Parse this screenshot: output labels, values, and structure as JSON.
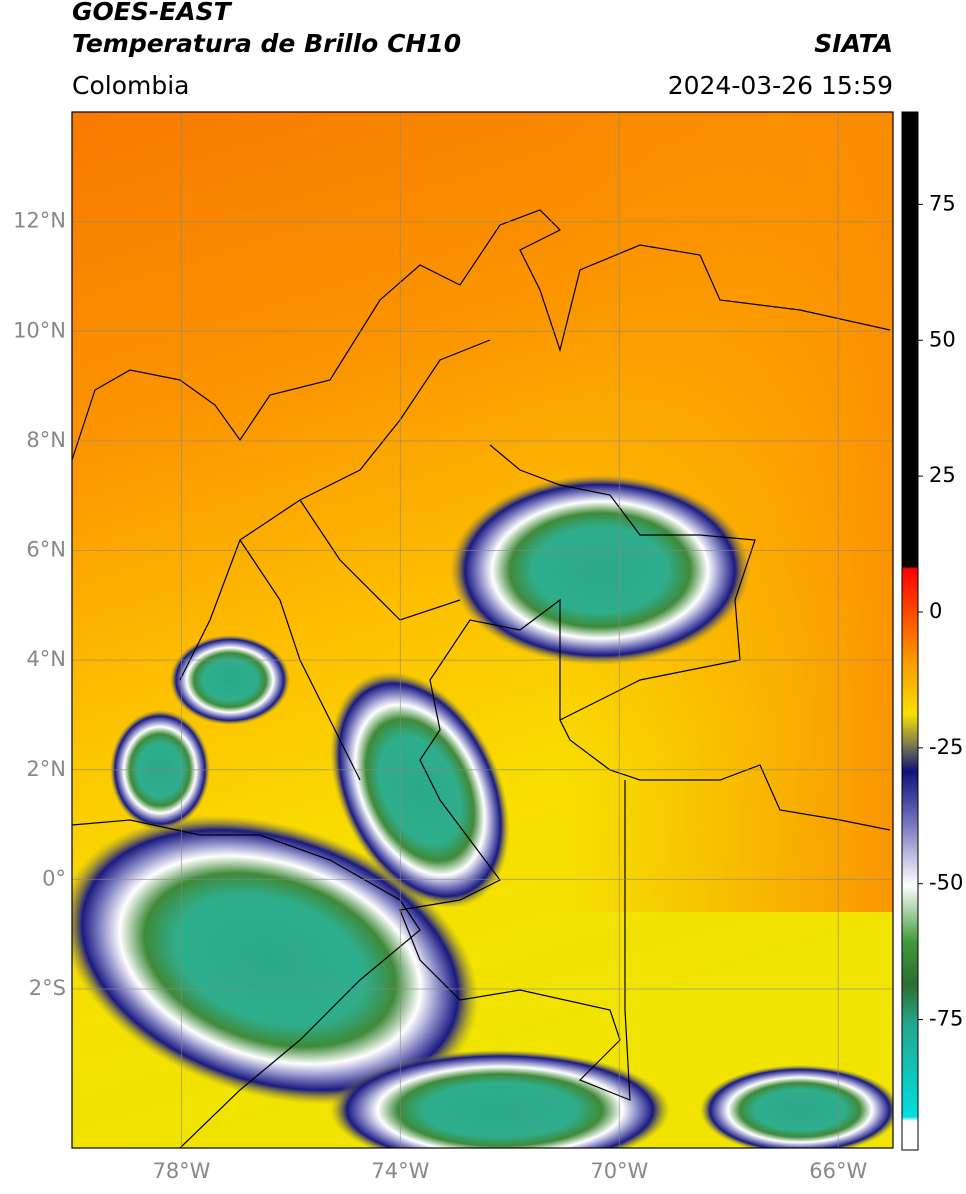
{
  "header": {
    "satellite": "GOES-EAST",
    "product": "Temperatura de Brillo CH10",
    "source": "SIATA",
    "region": "Colombia",
    "datetime": "2024-03-26 15:59"
  },
  "map": {
    "lon_lim": [
      -80,
      -65
    ],
    "lat_lim": [
      -4.9,
      14
    ],
    "lon_ticks": [
      {
        "value": -78,
        "label": "78°W"
      },
      {
        "value": -74,
        "label": "74°W"
      },
      {
        "value": -70,
        "label": "70°W"
      },
      {
        "value": -66,
        "label": "66°W"
      }
    ],
    "lat_ticks": [
      {
        "value": 12,
        "label": "12°N"
      },
      {
        "value": 10,
        "label": "10°N"
      },
      {
        "value": 8,
        "label": "8°N"
      },
      {
        "value": 6,
        "label": "6°N"
      },
      {
        "value": 4,
        "label": "4°N"
      },
      {
        "value": 2,
        "label": "2°N"
      },
      {
        "value": 0,
        "label": "0°"
      },
      {
        "value": -2,
        "label": "2°S"
      }
    ],
    "grid": true
  },
  "colorbar": {
    "lim": [
      -99,
      92
    ],
    "ticks": [
      75,
      50,
      25,
      0,
      -25,
      -50,
      -75
    ]
  }
}
